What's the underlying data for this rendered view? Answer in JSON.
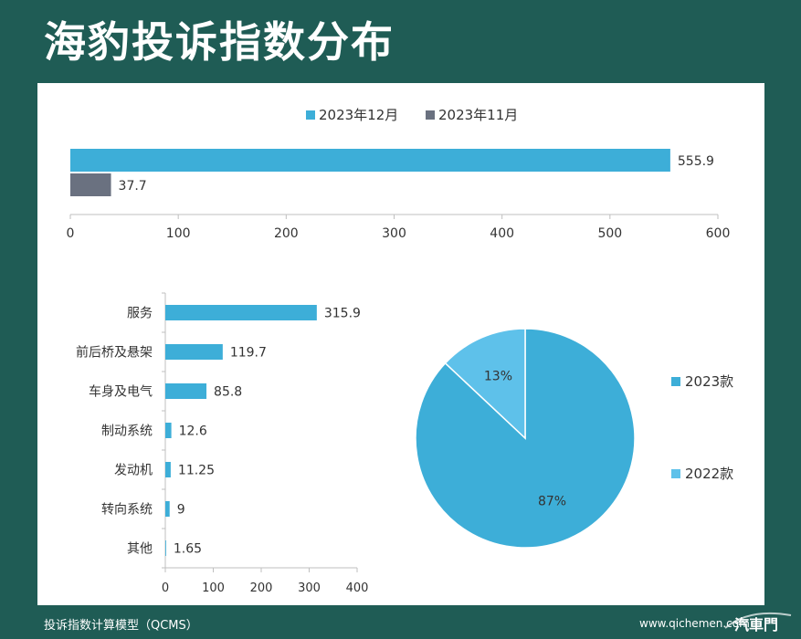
{
  "title": "海豹投诉指数分布",
  "footer": {
    "model": "投诉指数计算模型（QCMS）",
    "site": "www.qichemen.com",
    "logo_text": "汽車門"
  },
  "colors": {
    "background": "#1f5c55",
    "primary": "#3daed8",
    "secondary": "#6a7180",
    "light": "#5ec1ea"
  },
  "chart_data": [
    {
      "type": "bar",
      "orientation": "horizontal",
      "categories": [
        ""
      ],
      "series": [
        {
          "name": "2023年12月",
          "values": [
            555.9
          ],
          "color": "#3daed8"
        },
        {
          "name": "2023年11月",
          "values": [
            37.7
          ],
          "color": "#6a7180"
        }
      ],
      "data_labels": [
        "555.9",
        "37.7"
      ],
      "xlim": [
        0,
        600
      ],
      "xticks": [
        "0",
        "100",
        "200",
        "300",
        "400",
        "500",
        "600"
      ],
      "legend": "top-center",
      "grid": false
    },
    {
      "type": "bar",
      "orientation": "horizontal",
      "categories": [
        "服务",
        "前后桥及悬架",
        "车身及电气",
        "制动系统",
        "发动机",
        "转向系统",
        "其他"
      ],
      "values": [
        315.9,
        119.7,
        85.8,
        12.6,
        11.25,
        9,
        1.65
      ],
      "data_labels": [
        "315.9",
        "119.7",
        "85.8",
        "12.6",
        "11.25",
        "9",
        "1.65"
      ],
      "xlim": [
        0,
        400
      ],
      "xticks": [
        "0",
        "100",
        "200",
        "300",
        "400"
      ],
      "color": "#3daed8",
      "grid": false
    },
    {
      "type": "pie",
      "labels": [
        "2023款",
        "2022款"
      ],
      "values": [
        87,
        13
      ],
      "data_labels": [
        "87%",
        "13%"
      ],
      "colors": [
        "#3daed8",
        "#5ec1ea"
      ],
      "legend": "right"
    }
  ]
}
